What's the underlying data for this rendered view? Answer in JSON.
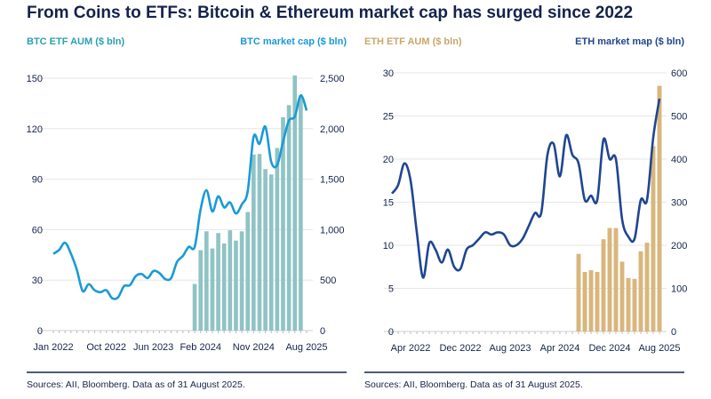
{
  "title": "From Coins to ETFs: Bitcoin & Ethereum market cap has surged since 2022",
  "sources_left": "Sources: AII, Bloomberg. Data as of 31 August 2025.",
  "sources_right": "Sources: AII, Bloomberg. Data as of 31 August 2025.",
  "colors": {
    "title": "#14234b",
    "btc_bar": "#8fc3c5",
    "btc_line": "#1a9ad6",
    "btc_label": "#2aa0b0",
    "eth_bar": "#d8b67c",
    "eth_line": "#1f4690",
    "eth_label": "#c9a66b"
  },
  "chart_data": [
    {
      "type": "bar+line",
      "left_label": "BTC ETF AUM ($ bln)",
      "right_label": "BTC market cap ($ bln)",
      "yleft": {
        "lim": [
          0,
          150
        ],
        "ticks": [
          "0",
          "30",
          "60",
          "90",
          "120",
          "150"
        ]
      },
      "yright": {
        "lim": [
          0,
          2500
        ],
        "ticks": [
          "0",
          "500",
          "1,000",
          "1,500",
          "2,000",
          "2,500"
        ]
      },
      "x_ticks": [
        {
          "index": 0,
          "label": "Jan 2022"
        },
        {
          "index": 9,
          "label": "Oct 2022"
        },
        {
          "index": 17,
          "label": "Jun 2023"
        },
        {
          "index": 25,
          "label": "Feb 2024"
        },
        {
          "index": 34,
          "label": "Nov 2024"
        },
        {
          "index": 43,
          "label": "Aug 2025"
        }
      ],
      "x_start": "Jan 2022",
      "x_end": "Aug 2025",
      "grid": true,
      "bars_start_index": 24,
      "bars": [
        27.7,
        47.8,
        59,
        48.8,
        58,
        51.8,
        59.6,
        53.5,
        59,
        70.5,
        104.6,
        105,
        96,
        92.8,
        108.5,
        126.8,
        134,
        151.6,
        139.5
      ],
      "line": [
        760,
        800,
        870,
        760,
        600,
        390,
        460,
        400,
        380,
        400,
        320,
        330,
        440,
        450,
        540,
        560,
        520,
        590,
        570,
        510,
        520,
        680,
        740,
        830,
        830,
        1200,
        1390,
        1180,
        1330,
        1220,
        1270,
        1160,
        1250,
        1380,
        1920,
        1850,
        2020,
        1670,
        1640,
        1870,
        2080,
        2120,
        2330,
        2180
      ]
    },
    {
      "type": "bar+line",
      "left_label": "ETH ETF AUM ($ bln)",
      "right_label": "ETH market map ($ bln)",
      "yleft": {
        "lim": [
          0,
          30
        ],
        "ticks": [
          "0",
          "5",
          "10",
          "15",
          "20",
          "25",
          "30"
        ]
      },
      "yright": {
        "lim": [
          0,
          600
        ],
        "ticks": [
          "0",
          "100",
          "200",
          "300",
          "400",
          "500",
          "600"
        ]
      },
      "x_ticks": [
        {
          "index": 3,
          "label": "Apr 2022"
        },
        {
          "index": 11,
          "label": "Dec 2022"
        },
        {
          "index": 19,
          "label": "Aug 2023"
        },
        {
          "index": 27,
          "label": "Apr 2024"
        },
        {
          "index": 35,
          "label": "Dec 2024"
        },
        {
          "index": 43,
          "label": "Aug 2025"
        }
      ],
      "x_start": "Jan 2022",
      "x_end": "Aug 2025",
      "grid": true,
      "bars_start_index": 30,
      "bars": [
        9,
        6.9,
        7.1,
        6.9,
        10.7,
        12,
        12,
        8.1,
        6.2,
        6.1,
        9.3,
        10.3,
        21.5,
        28.5
      ],
      "line": [
        320,
        340,
        390,
        350,
        230,
        125,
        205,
        190,
        160,
        190,
        150,
        145,
        190,
        200,
        215,
        230,
        225,
        230,
        225,
        200,
        200,
        215,
        245,
        275,
        275,
        410,
        435,
        360,
        455,
        410,
        390,
        305,
        315,
        305,
        445,
        400,
        400,
        260,
        220,
        215,
        305,
        305,
        450,
        540
      ]
    }
  ]
}
